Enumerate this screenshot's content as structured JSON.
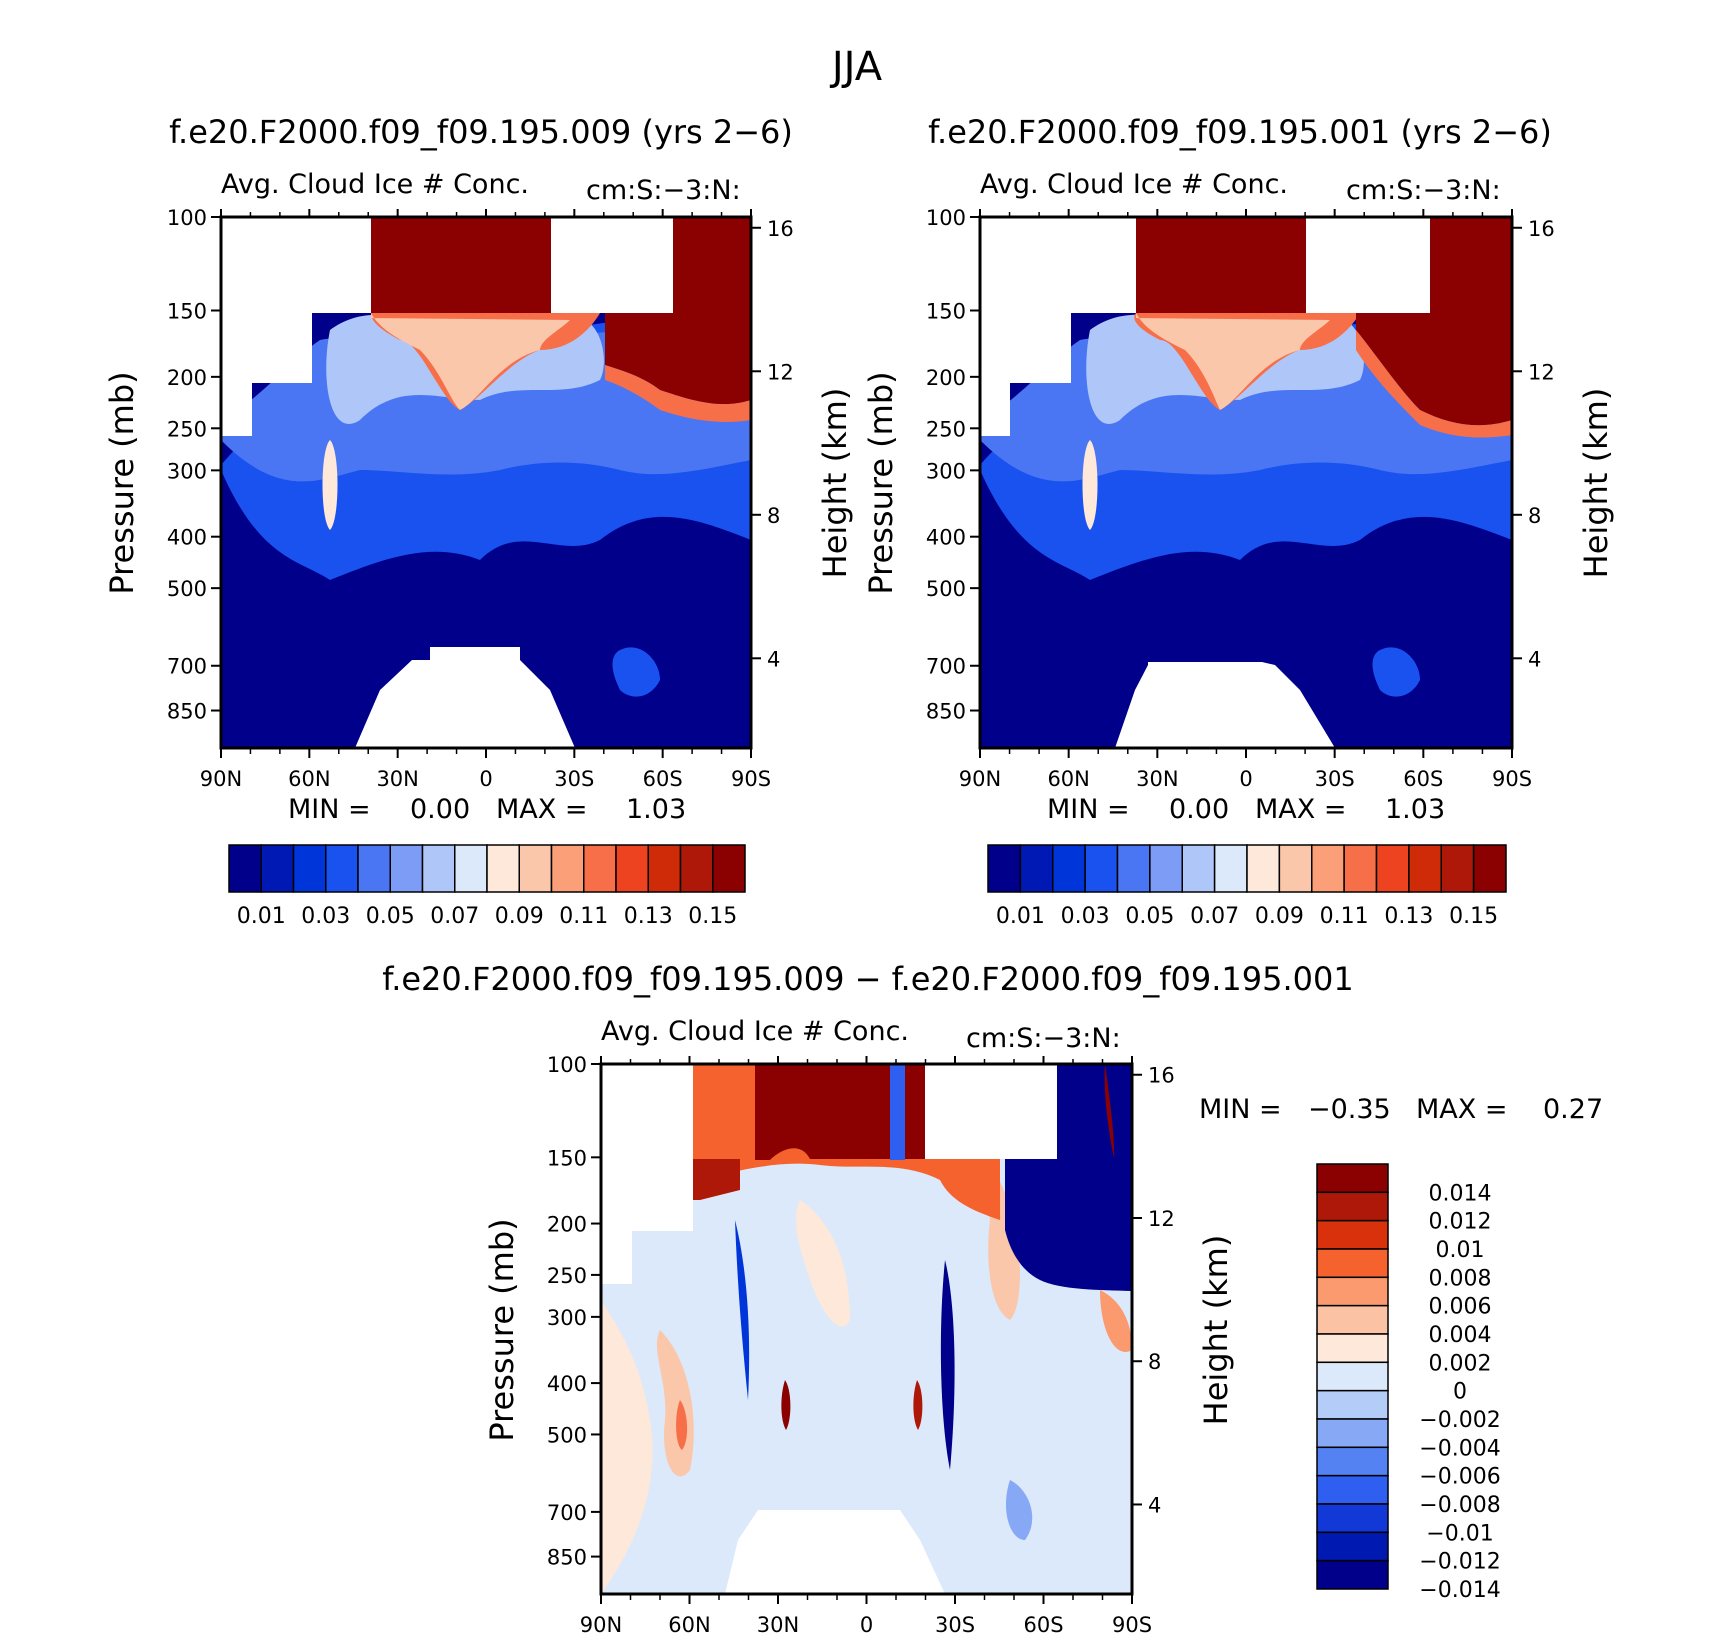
{
  "page_title": "JJA",
  "colors": {
    "hi": "#8b0000",
    "white": "#ffffff",
    "navy": "#00008b",
    "fill_blue": "#2a5fe6",
    "fill_lightblue": "#9ec3f5",
    "fill_peach": "#fbd0b8"
  },
  "chart_data": [
    {
      "type": "heatmap",
      "title": "f.e20.F2000.f09_f09.195.009 (yrs 2−6)",
      "variable": "Avg. Cloud Ice # Conc.",
      "units": "cm:S:−3:N:",
      "ylabel": "Pressure (mb)",
      "y2label": "Height (km)",
      "x_ticks": [
        "90N",
        "60N",
        "30N",
        "0",
        "30S",
        "60S",
        "90S"
      ],
      "y_ticks": [
        100,
        150,
        200,
        250,
        300,
        400,
        500,
        700,
        850
      ],
      "y2_ticks": [
        16,
        12,
        8,
        4
      ],
      "min_label": "MIN =",
      "min": "0.00",
      "max_label": "MAX =",
      "max": "1.03",
      "colorbar": {
        "orientation": "horizontal",
        "colors": [
          "#00008b",
          "#0019b4",
          "#0035d9",
          "#1a52f0",
          "#4a76f3",
          "#7d9cf5",
          "#afc6f8",
          "#dce9fb",
          "#fde8da",
          "#fbc7aa",
          "#fa9f78",
          "#f76f48",
          "#ee4320",
          "#cf2b08",
          "#ae1808",
          "#8b0000"
        ],
        "labels": [
          "0.01",
          "0.03",
          "0.05",
          "0.07",
          "0.09",
          "0.11",
          "0.13",
          "0.15"
        ]
      }
    },
    {
      "type": "heatmap",
      "title": "f.e20.F2000.f09_f09.195.001 (yrs 2−6)",
      "variable": "Avg. Cloud Ice # Conc.",
      "units": "cm:S:−3:N:",
      "ylabel": "Pressure (mb)",
      "y2label": "Height (km)",
      "x_ticks": [
        "90N",
        "60N",
        "30N",
        "0",
        "30S",
        "60S",
        "90S"
      ],
      "y_ticks": [
        100,
        150,
        200,
        250,
        300,
        400,
        500,
        700,
        850
      ],
      "y2_ticks": [
        16,
        12,
        8,
        4
      ],
      "min_label": "MIN =",
      "min": "0.00",
      "max_label": "MAX =",
      "max": "1.03",
      "colorbar": {
        "orientation": "horizontal",
        "colors": [
          "#00008b",
          "#0019b4",
          "#0035d9",
          "#1a52f0",
          "#4a76f3",
          "#7d9cf5",
          "#afc6f8",
          "#dce9fb",
          "#fde8da",
          "#fbc7aa",
          "#fa9f78",
          "#f76f48",
          "#ee4320",
          "#cf2b08",
          "#ae1808",
          "#8b0000"
        ],
        "labels": [
          "0.01",
          "0.03",
          "0.05",
          "0.07",
          "0.09",
          "0.11",
          "0.13",
          "0.15"
        ]
      }
    },
    {
      "type": "heatmap",
      "title": "f.e20.F2000.f09_f09.195.009 − f.e20.F2000.f09_f09.195.001",
      "variable": "Avg. Cloud Ice # Conc.",
      "units": "cm:S:−3:N:",
      "ylabel": "Pressure (mb)",
      "y2label": "Height (km)",
      "x_ticks": [
        "90N",
        "60N",
        "30N",
        "0",
        "30S",
        "60S",
        "90S"
      ],
      "y_ticks": [
        100,
        150,
        200,
        250,
        300,
        400,
        500,
        700,
        850
      ],
      "y2_ticks": [
        16,
        12,
        8,
        4
      ],
      "min_label": "MIN =",
      "min": "−0.35",
      "max_label": "MAX =",
      "max": "0.27",
      "colorbar": {
        "orientation": "vertical",
        "colors": [
          "#8b0000",
          "#ae1808",
          "#d8310c",
          "#f5622d",
          "#fa9a6e",
          "#fbc3a4",
          "#fde8da",
          "#dce9fb",
          "#b3ccf8",
          "#86a8f5",
          "#5582f2",
          "#2e5ff0",
          "#1238d8",
          "#0019b0",
          "#00008b"
        ],
        "labels": [
          "0.014",
          "0.012",
          "0.01",
          "0.008",
          "0.006",
          "0.004",
          "0.002",
          "0",
          "−0.002",
          "−0.004",
          "−0.006",
          "−0.008",
          "−0.01",
          "−0.012",
          "−0.014"
        ]
      }
    }
  ]
}
